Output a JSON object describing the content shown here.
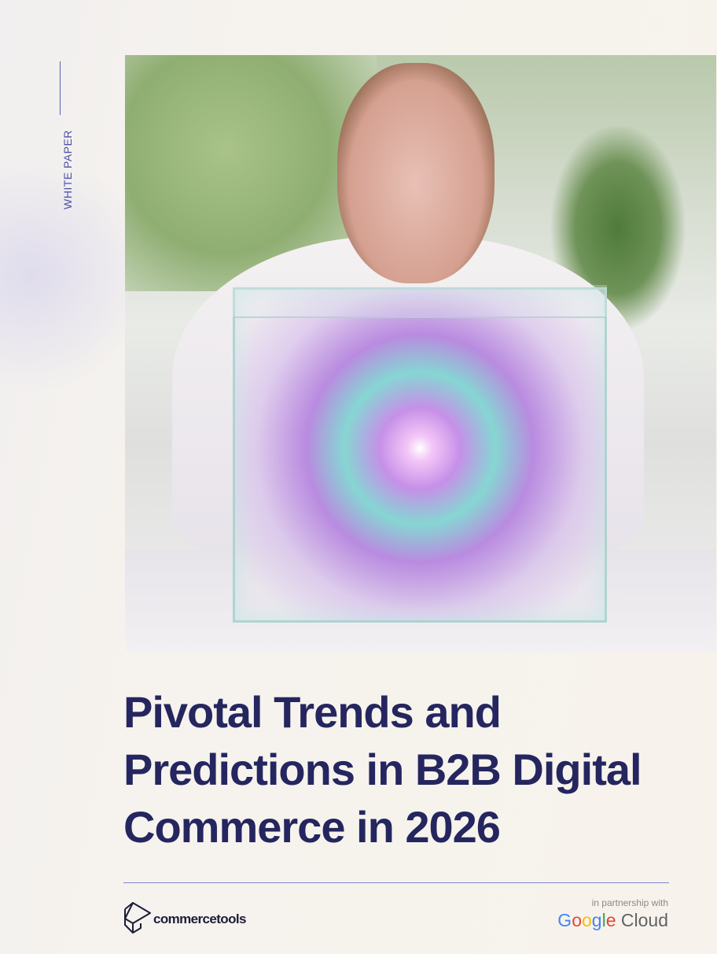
{
  "side": {
    "label": "WHITE PAPER"
  },
  "cover_image": {
    "icon": "photo-woman-glass-cube-galaxy"
  },
  "title": {
    "lines": [
      "Pivotal Trends and",
      "Predictions in B2B Digital",
      "Commerce in 2026"
    ]
  },
  "footer": {
    "brand": "commercetools",
    "partner_label": "in partnership with",
    "partner_logo": {
      "google": [
        "G",
        "o",
        "o",
        "g",
        "l",
        "e"
      ],
      "cloud": "Cloud"
    }
  },
  "colors": {
    "title": "#25265f",
    "accent": "#7f86cf",
    "background": "#f7f3ec"
  }
}
